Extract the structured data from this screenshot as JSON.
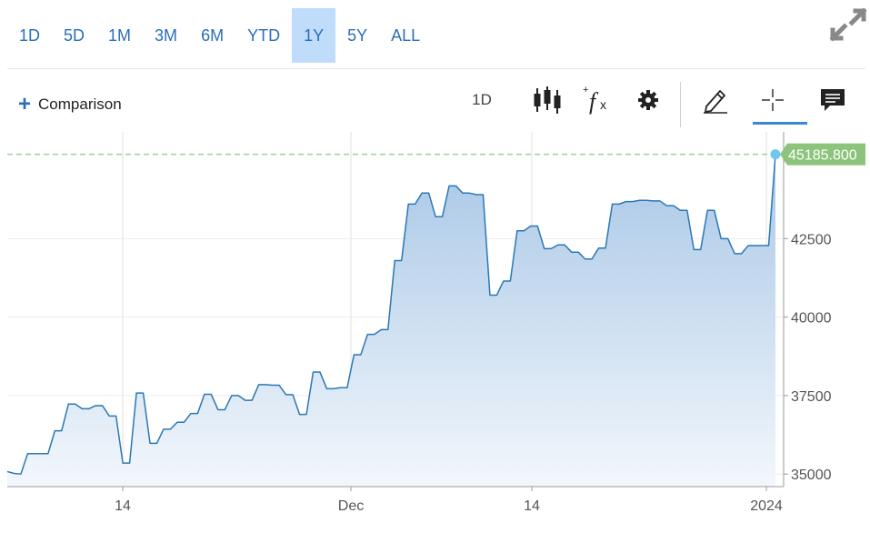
{
  "range_buttons": [
    {
      "label": "1D",
      "active": false
    },
    {
      "label": "5D",
      "active": false
    },
    {
      "label": "1M",
      "active": false
    },
    {
      "label": "3M",
      "active": false
    },
    {
      "label": "6M",
      "active": false
    },
    {
      "label": "YTD",
      "active": false
    },
    {
      "label": "1Y",
      "active": true
    },
    {
      "label": "5Y",
      "active": false
    },
    {
      "label": "ALL",
      "active": false
    }
  ],
  "toolbar": {
    "comparison_label": "Comparison",
    "interval_label": "1D",
    "icons": [
      "expand-icon",
      "candlestick-icon",
      "function-icon",
      "gear-icon",
      "pencil-icon",
      "crosshair-icon",
      "comment-icon"
    ]
  },
  "colors": {
    "accent": "#2a6ebb",
    "line": "#2a78b5",
    "price_tag": "#8cc47b",
    "active_range": "#bfdcfb"
  },
  "chart_data": {
    "type": "area",
    "title": "",
    "xlabel": "",
    "ylabel": "",
    "x_ticks": [
      "14",
      "Dec",
      "14",
      "2024"
    ],
    "y_ticks": [
      35000,
      37500,
      40000,
      42500
    ],
    "ylim": [
      34600,
      45900
    ],
    "grid": true,
    "current_value_label": "45185.800",
    "current_value": 45185.8,
    "series": [
      {
        "values": [
          35080,
          35020,
          35000,
          35650,
          35650,
          35650,
          35650,
          36380,
          36380,
          37230,
          37230,
          37080,
          37080,
          37180,
          37180,
          36850,
          36850,
          35350,
          35350,
          37580,
          37580,
          35980,
          35980,
          36430,
          36430,
          36650,
          36650,
          36930,
          36930,
          37540,
          37540,
          37050,
          37050,
          37500,
          37500,
          37350,
          37350,
          37850,
          37850,
          37830,
          37830,
          37530,
          37530,
          36900,
          36900,
          38250,
          38250,
          37720,
          37720,
          37750,
          37750,
          38800,
          38800,
          39450,
          39450,
          39600,
          39600,
          41800,
          41800,
          43600,
          43600,
          43950,
          43950,
          43200,
          43200,
          44180,
          44180,
          43950,
          43950,
          43900,
          43900,
          40700,
          40700,
          41150,
          41150,
          42750,
          42750,
          42900,
          42900,
          42180,
          42180,
          42300,
          42300,
          42070,
          42070,
          41850,
          41850,
          42200,
          42200,
          43600,
          43600,
          43680,
          43680,
          43720,
          43720,
          43700,
          43700,
          43550,
          43550,
          43400,
          43400,
          42150,
          42150,
          43400,
          43400,
          42500,
          42500,
          42020,
          42020,
          42280,
          42280,
          42280,
          42280,
          45185.8
        ]
      }
    ]
  }
}
